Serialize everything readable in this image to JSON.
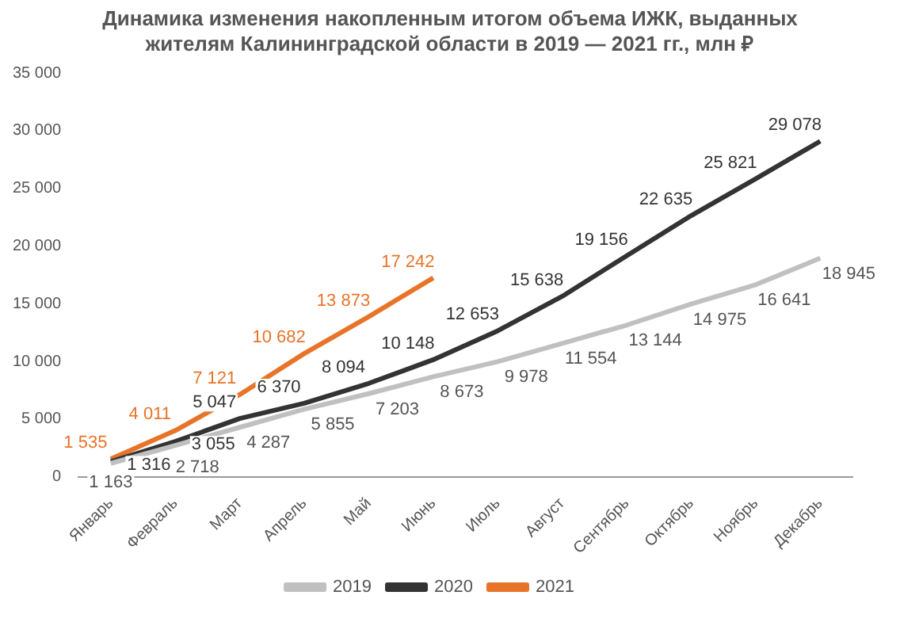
{
  "chart_data": {
    "type": "line",
    "title": "Динамика изменения накопленным итогом объема ИЖК, выданных жителям Калининградской области в 2019 — 2021 гг., млн ₽",
    "categories": [
      "Январь",
      "Февраль",
      "Март",
      "Апрель",
      "Май",
      "Июнь",
      "Июль",
      "Август",
      "Сентябрь",
      "Октябрь",
      "Ноябрь",
      "Декабрь"
    ],
    "series": [
      {
        "name": "2019",
        "color": "#c0c0c0",
        "values": [
          1163,
          2718,
          4287,
          5855,
          7203,
          8673,
          9978,
          11554,
          13144,
          14975,
          16641,
          18945
        ]
      },
      {
        "name": "2020",
        "color": "#333333",
        "values": [
          1316,
          3055,
          5047,
          6370,
          8094,
          10148,
          12653,
          15638,
          19156,
          22635,
          25821,
          29078
        ]
      },
      {
        "name": "2021",
        "color": "#e8742a",
        "values": [
          1535,
          4011,
          7121,
          10682,
          13873,
          17242,
          null,
          null,
          null,
          null,
          null,
          null
        ]
      }
    ],
    "ylim": [
      0,
      35000
    ],
    "yticks": [
      0,
      5000,
      10000,
      15000,
      20000,
      25000,
      30000,
      35000
    ],
    "data_labels": true,
    "legend": "bottom",
    "grid": false,
    "marker": "none",
    "line_style": "solid"
  }
}
